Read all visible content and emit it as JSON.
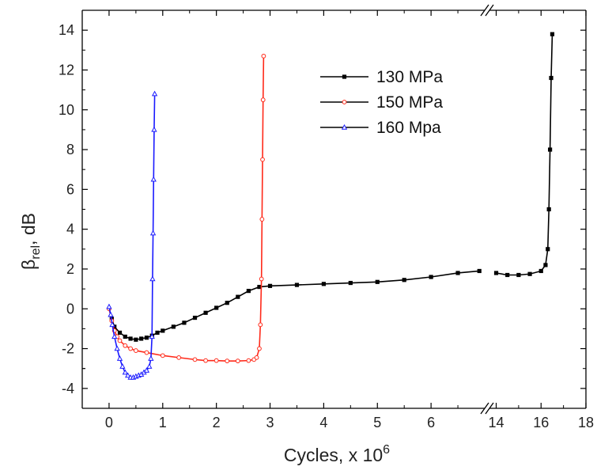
{
  "chart_data": {
    "type": "line",
    "xlabel": "Cycles, x 10",
    "xlabel_exponent": "6",
    "ylabel": "β",
    "ylabel_subscript": "rel",
    "ylabel_suffix": ", dB",
    "ylim": [
      -5,
      15
    ],
    "x_axis_broken": true,
    "x_segments": [
      {
        "xlim": [
          -0.5,
          7.0
        ],
        "ticks": [
          0,
          1,
          2,
          3,
          4,
          5,
          6
        ]
      },
      {
        "xlim": [
          13.7,
          18.0
        ],
        "ticks": [
          14,
          16,
          18
        ]
      }
    ],
    "yticks": [
      -4,
      -2,
      0,
      2,
      4,
      6,
      8,
      10,
      12,
      14
    ],
    "xtick_labels": [
      "0",
      "1",
      "2",
      "3",
      "4",
      "5",
      "6",
      "14",
      "16",
      "18"
    ],
    "ytick_labels": [
      "-4",
      "-2",
      "0",
      "2",
      "4",
      "6",
      "8",
      "10",
      "12",
      "14"
    ],
    "legend_position": "top-right",
    "series": [
      {
        "name": "130 MPa",
        "color": "#000000",
        "marker": "square",
        "x": [
          0.05,
          0.1,
          0.2,
          0.3,
          0.4,
          0.5,
          0.6,
          0.7,
          0.8,
          0.9,
          1.0,
          1.2,
          1.4,
          1.6,
          1.8,
          2.0,
          2.2,
          2.4,
          2.6,
          2.8,
          3.0,
          3.5,
          4.0,
          4.5,
          5.0,
          5.5,
          6.0,
          6.5,
          6.9,
          14.0,
          14.5,
          15.0,
          15.5,
          16.0,
          16.2,
          16.3,
          16.35,
          16.4,
          16.45,
          16.5
        ],
        "y": [
          -0.5,
          -0.9,
          -1.2,
          -1.4,
          -1.5,
          -1.55,
          -1.5,
          -1.45,
          -1.35,
          -1.2,
          -1.1,
          -0.9,
          -0.7,
          -0.45,
          -0.2,
          0.05,
          0.3,
          0.6,
          0.9,
          1.1,
          1.15,
          1.2,
          1.25,
          1.3,
          1.35,
          1.45,
          1.6,
          1.8,
          1.9,
          1.8,
          1.7,
          1.7,
          1.75,
          1.9,
          2.2,
          3.0,
          5.0,
          8.0,
          11.6,
          13.8
        ]
      },
      {
        "name": "150 MPa",
        "color": "#ff2a1a",
        "marker": "circle",
        "x": [
          0.0,
          0.05,
          0.1,
          0.15,
          0.2,
          0.3,
          0.4,
          0.5,
          0.7,
          1.0,
          1.3,
          1.6,
          1.8,
          2.0,
          2.2,
          2.4,
          2.6,
          2.7,
          2.75,
          2.8,
          2.82,
          2.84,
          2.85,
          2.86,
          2.87,
          2.88
        ],
        "y": [
          0.0,
          -0.6,
          -1.1,
          -1.4,
          -1.6,
          -1.85,
          -2.0,
          -2.1,
          -2.2,
          -2.35,
          -2.45,
          -2.55,
          -2.6,
          -2.6,
          -2.62,
          -2.62,
          -2.6,
          -2.55,
          -2.45,
          -2.0,
          -0.8,
          1.5,
          4.5,
          7.5,
          10.5,
          12.7
        ]
      },
      {
        "name": "160 Mpa",
        "color": "#1a1aff",
        "marker": "triangle",
        "x": [
          0.0,
          0.03,
          0.06,
          0.1,
          0.15,
          0.2,
          0.25,
          0.3,
          0.35,
          0.4,
          0.45,
          0.5,
          0.55,
          0.6,
          0.65,
          0.7,
          0.75,
          0.78,
          0.8,
          0.81,
          0.82,
          0.83,
          0.84,
          0.85
        ],
        "y": [
          0.1,
          -0.3,
          -0.8,
          -1.4,
          -2.0,
          -2.5,
          -2.9,
          -3.2,
          -3.35,
          -3.45,
          -3.45,
          -3.4,
          -3.35,
          -3.3,
          -3.2,
          -3.1,
          -2.9,
          -2.5,
          -1.4,
          1.5,
          3.8,
          6.5,
          9.0,
          10.8
        ]
      }
    ]
  }
}
